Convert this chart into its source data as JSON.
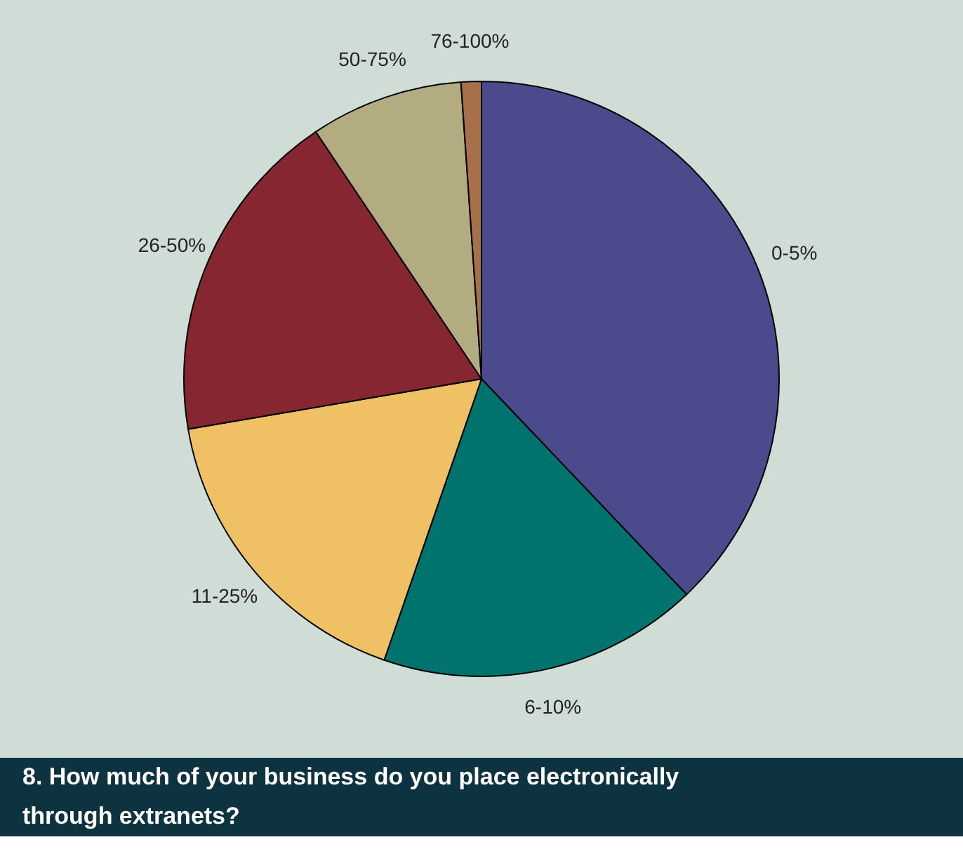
{
  "chart_data": {
    "type": "pie",
    "title": "8. How much of your business do you place electronically through extranets?",
    "categories": [
      "0-5%",
      "6-10%",
      "11-25%",
      "26-50%",
      "50-75%",
      "76-100%"
    ],
    "values": [
      37.9,
      17.4,
      17.0,
      18.3,
      8.3,
      1.1
    ],
    "colors": [
      "#4a4a8c",
      "#00736e",
      "#f0c064",
      "#862630",
      "#b2ac80",
      "#a8704a"
    ],
    "legend": false
  }
}
